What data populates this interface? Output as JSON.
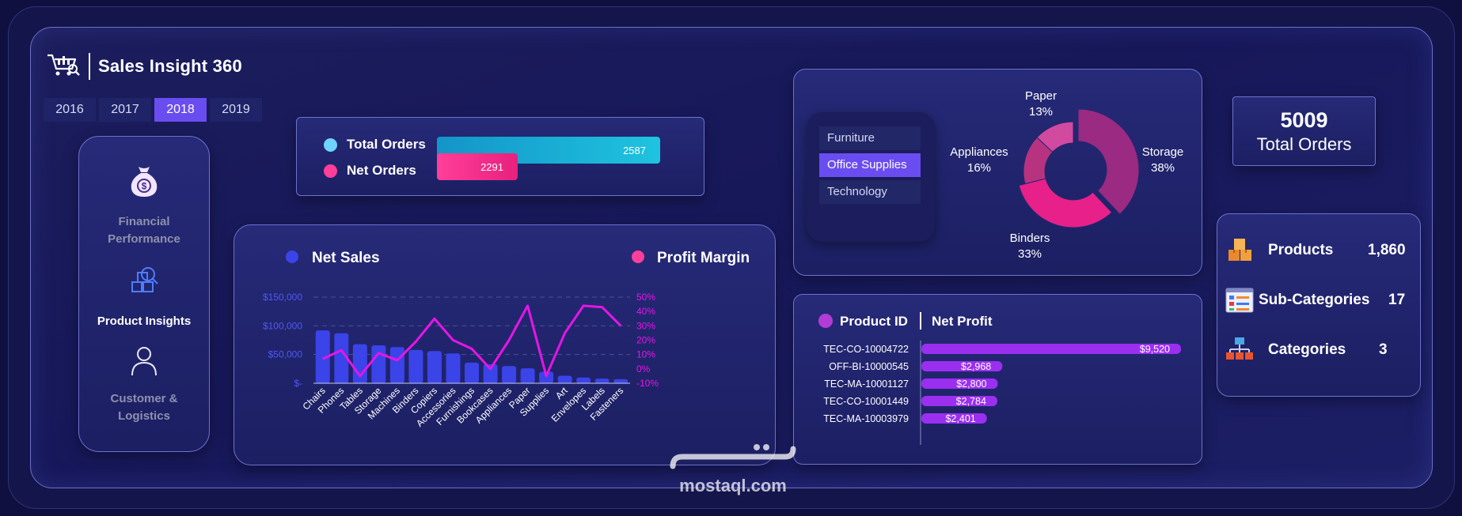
{
  "app": {
    "title": "Sales Insight 360"
  },
  "years": [
    "2016",
    "2017",
    "2018",
    "2019"
  ],
  "selected_year": "2018",
  "nav": {
    "financial": "Financial Performance",
    "product": "Product Insights",
    "customer": "Customer & Logistics"
  },
  "orders": {
    "total_label": "Total Orders",
    "total_value": "2587",
    "net_label": "Net Orders",
    "net_value": "2291",
    "total_color": "#1fc3e0",
    "net_color": "#ff3f9a"
  },
  "categories": {
    "items": [
      "Furniture",
      "Office Supplies",
      "Technology"
    ],
    "selected": "Office Supplies"
  },
  "donut": [
    {
      "label": "Storage",
      "pct": "38%",
      "value": 38
    },
    {
      "label": "Binders",
      "pct": "33%",
      "value": 33
    },
    {
      "label": "Appliances",
      "pct": "16%",
      "value": 16
    },
    {
      "label": "Paper",
      "pct": "13%",
      "value": 13
    }
  ],
  "total_orders": {
    "value": "5009",
    "label": "Total Orders"
  },
  "kpis": [
    {
      "label": "Products",
      "value": "1,860",
      "icon": "boxes-icon"
    },
    {
      "label": "Sub-Categories",
      "value": "17",
      "icon": "grid-list-icon"
    },
    {
      "label": "Categories",
      "value": "3",
      "icon": "hierarchy-icon"
    }
  ],
  "products": {
    "col1": "Product ID",
    "col2": "Net Profit",
    "rows": [
      {
        "id": "TEC-CO-10004722",
        "profit": 9520,
        "label": "$9,520"
      },
      {
        "id": "OFF-BI-10000545",
        "profit": 2968,
        "label": "$2,968"
      },
      {
        "id": "TEC-MA-10001127",
        "profit": 2800,
        "label": "$2,800"
      },
      {
        "id": "TEC-CO-10001449",
        "profit": 2784,
        "label": "$2,784"
      },
      {
        "id": "TEC-MA-10003979",
        "profit": 2401,
        "label": "$2,401"
      }
    ]
  },
  "chart_data": {
    "type": "bar",
    "legend": [
      "Net Sales",
      "Profit Margin"
    ],
    "categories": [
      "Chairs",
      "Phones",
      "Tables",
      "Storage",
      "Machines",
      "Binders",
      "Copiers",
      "Accessories",
      "Furnishings",
      "Bookcases",
      "Appliances",
      "Paper",
      "Supplies",
      "Art",
      "Envelopes",
      "Labels",
      "Fasteners"
    ],
    "series": [
      {
        "name": "Net Sales",
        "axis": "left",
        "color": "#3b44e8",
        "values": [
          92000,
          87000,
          68000,
          66000,
          63000,
          58000,
          56000,
          52000,
          36000,
          33000,
          30000,
          26000,
          20000,
          13000,
          10000,
          8000,
          7000
        ]
      },
      {
        "name": "Profit Margin",
        "axis": "right",
        "color": "#e516e5",
        "values": [
          7,
          13,
          -5,
          11,
          6,
          19,
          35,
          20,
          14,
          0,
          20,
          44,
          -5,
          25,
          44,
          43,
          30
        ]
      }
    ],
    "y_left": {
      "min": 0,
      "max": 150000,
      "ticks": [
        "$-",
        "$50,000",
        "$100,000",
        "$150,000"
      ]
    },
    "y_right": {
      "min": -10,
      "max": 50,
      "ticks": [
        "-10%",
        "0%",
        "10%",
        "20%",
        "30%",
        "40%",
        "50%"
      ]
    }
  }
}
